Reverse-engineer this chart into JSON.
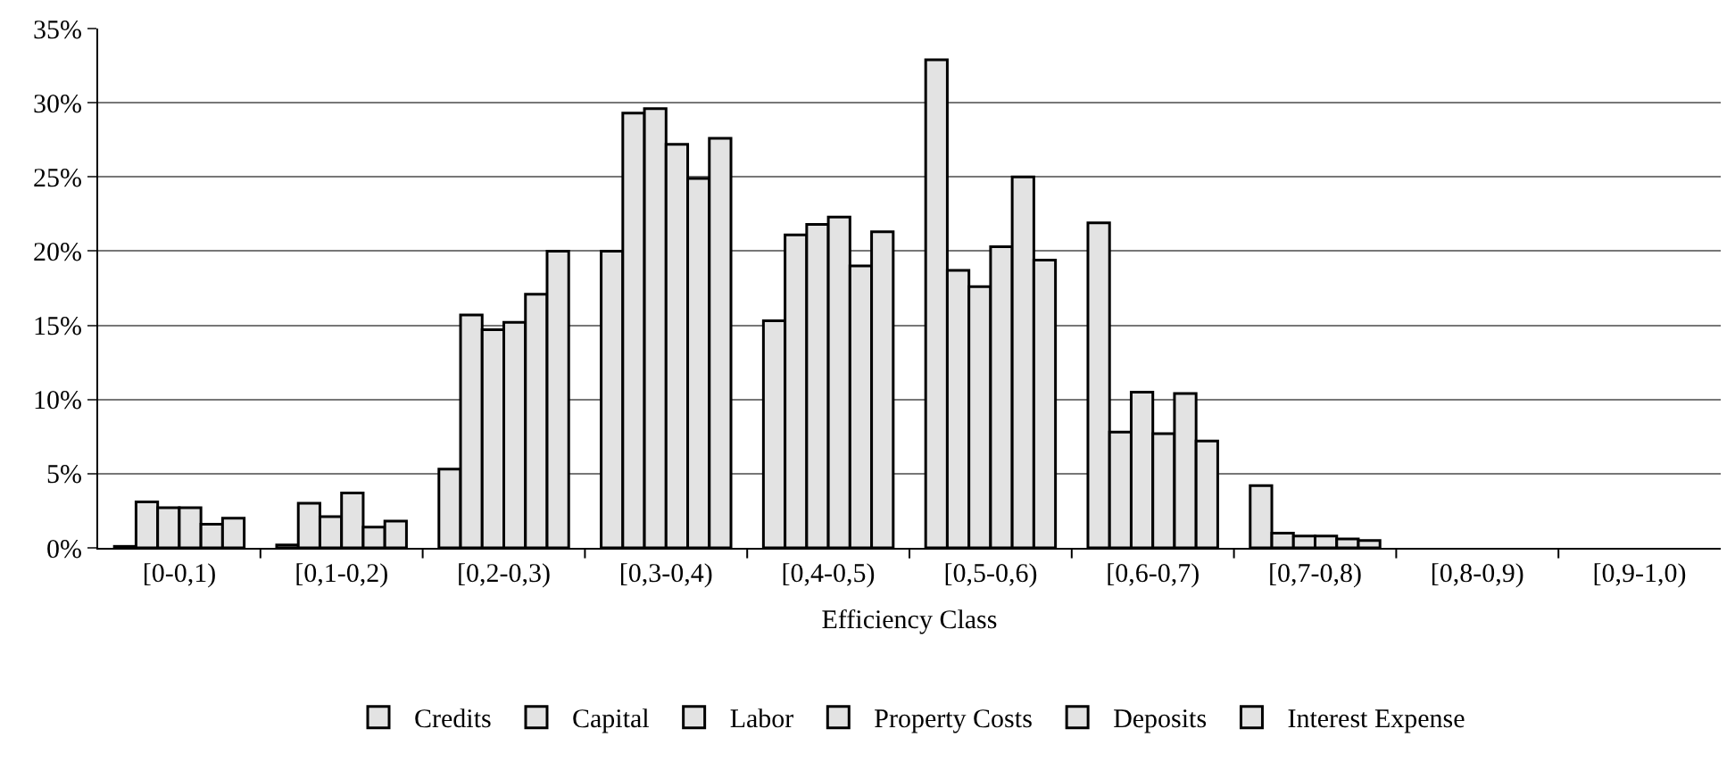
{
  "chart_data": {
    "type": "bar",
    "xlabel": "Efficiency Class",
    "categories": [
      "[0-0,1)",
      "[0,1-0,2)",
      "[0,2-0,3)",
      "[0,3-0,4)",
      "[0,4-0,5)",
      "[0,5-0,6)",
      "[0,6-0,7)",
      "[0,7-0,8)",
      "[0,8-0,9)",
      "[0,9-1,0)"
    ],
    "series": [
      {
        "name": "Credits",
        "color": "#e3e3e3",
        "values": [
          0.1,
          0.2,
          5.3,
          20.0,
          15.3,
          32.9,
          21.9,
          4.2,
          0,
          0
        ]
      },
      {
        "name": "Capital",
        "color": "#e3e3e3",
        "values": [
          3.1,
          3.0,
          15.7,
          29.3,
          21.1,
          18.7,
          7.8,
          1.0,
          0,
          0
        ]
      },
      {
        "name": "Labor",
        "color": "#e3e3e3",
        "values": [
          2.7,
          2.1,
          14.7,
          29.6,
          21.8,
          17.6,
          10.5,
          0.8,
          0,
          0
        ]
      },
      {
        "name": "Property Costs",
        "color": "#e3e3e3",
        "values": [
          2.7,
          3.7,
          15.2,
          27.2,
          22.3,
          20.3,
          7.7,
          0.8,
          0,
          0
        ]
      },
      {
        "name": "Deposits",
        "color": "#e3e3e3",
        "values": [
          1.6,
          1.4,
          17.1,
          24.9,
          19.0,
          25.0,
          10.4,
          0.6,
          0,
          0
        ]
      },
      {
        "name": "Interest Expense",
        "color": "#e3e3e3",
        "values": [
          2.0,
          1.8,
          20.0,
          27.6,
          21.3,
          19.4,
          7.2,
          0.5,
          0,
          0
        ]
      }
    ],
    "ylim": [
      0,
      35
    ],
    "yticks": [
      {
        "value": 0,
        "label": "0%"
      },
      {
        "value": 5,
        "label": "5%"
      },
      {
        "value": 10,
        "label": "10%"
      },
      {
        "value": 15,
        "label": "15%"
      },
      {
        "value": 20,
        "label": "20%"
      },
      {
        "value": 25,
        "label": "25%"
      },
      {
        "value": 30,
        "label": "30%"
      },
      {
        "value": 35,
        "label": "35%"
      }
    ],
    "grid": "y",
    "legend": "bottom"
  }
}
